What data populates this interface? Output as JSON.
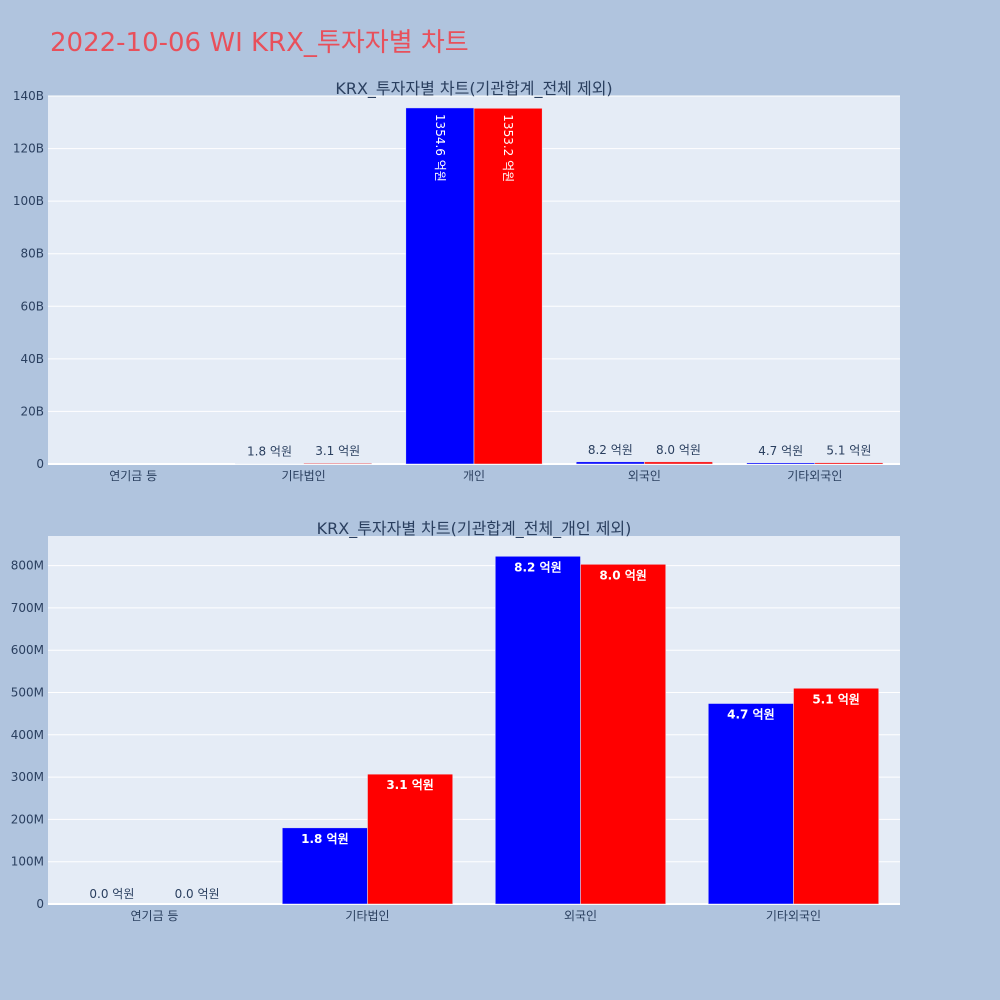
{
  "title": "2022-10-06 WI KRX_투자자별 차트",
  "chart_data": [
    {
      "type": "bar",
      "title": "KRX_투자자별 차트(기관합계_전체 제외)",
      "categories": [
        "연기금 등",
        "기타법인",
        "개인",
        "외국인",
        "기타외국인"
      ],
      "ylim": [
        0,
        140000000000
      ],
      "yticks": [
        0,
        20000000000,
        40000000000,
        60000000000,
        80000000000,
        100000000000,
        120000000000,
        140000000000
      ],
      "ytick_labels": [
        "0",
        "20B",
        "40B",
        "60B",
        "80B",
        "100B",
        "120B",
        "140B"
      ],
      "grid": true,
      "series": [
        {
          "color": "#0000ff",
          "values": [
            0,
            180000000,
            135460000000,
            820000000,
            470000000
          ],
          "labels": [
            "",
            "1.8 억원",
            "1354.6 억원",
            "8.2 억원",
            "4.7 억원"
          ]
        },
        {
          "color": "#ff0000",
          "values": [
            0,
            310000000,
            135320000000,
            800000000,
            510000000
          ],
          "labels": [
            "",
            "3.1 억원",
            "1353.2 억원",
            "8.0 억원",
            "5.1 억원"
          ]
        }
      ]
    },
    {
      "type": "bar",
      "title": "KRX_투자자별 차트(기관합계_전체_개인 제외)",
      "categories": [
        "연기금 등",
        "기타법인",
        "외국인",
        "기타외국인"
      ],
      "ylim": [
        0,
        870000000
      ],
      "yticks": [
        0,
        100000000,
        200000000,
        300000000,
        400000000,
        500000000,
        600000000,
        700000000,
        800000000
      ],
      "ytick_labels": [
        "0",
        "100M",
        "200M",
        "300M",
        "400M",
        "500M",
        "600M",
        "700M",
        "800M"
      ],
      "grid": true,
      "series": [
        {
          "color": "#0000ff",
          "values": [
            0,
            180000000,
            822000000,
            474000000
          ],
          "labels": [
            "0.0 억원",
            "1.8 억원",
            "8.2 억원",
            "4.7 억원"
          ]
        },
        {
          "color": "#ff0000",
          "values": [
            0,
            307000000,
            803000000,
            510000000
          ],
          "labels": [
            "0.0 억원",
            "3.1 억원",
            "8.0 억원",
            "5.1 억원"
          ]
        }
      ]
    }
  ]
}
